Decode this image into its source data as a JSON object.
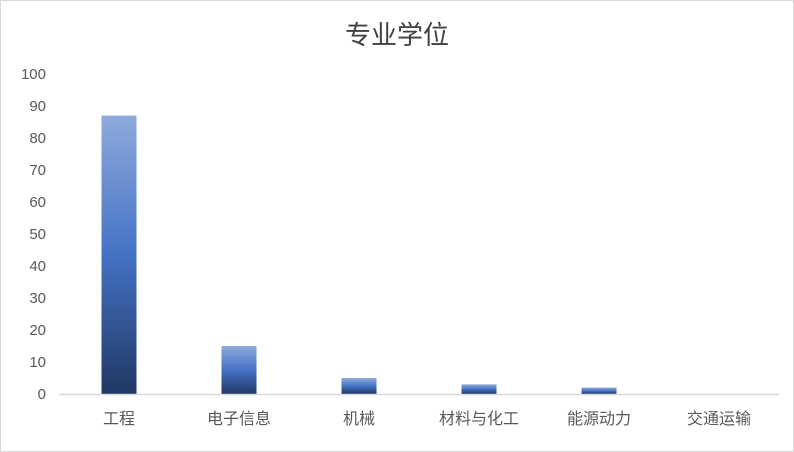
{
  "chart_data": {
    "type": "bar",
    "title": "专业学位",
    "categories": [
      "工程",
      "电子信息",
      "机械",
      "材料与化工",
      "能源动力",
      "交通运输"
    ],
    "values": [
      87,
      15,
      5,
      3,
      2,
      0
    ],
    "ylim": [
      0,
      100
    ],
    "yticks": [
      0,
      10,
      20,
      30,
      40,
      50,
      60,
      70,
      80,
      90,
      100
    ],
    "grid": false,
    "legend": "none",
    "colors": {
      "bar_top": "#8faadc",
      "bar_mid": "#4472c4",
      "bar_bottom": "#203864",
      "axis": "#d9d9d9",
      "text": "#595959"
    }
  }
}
